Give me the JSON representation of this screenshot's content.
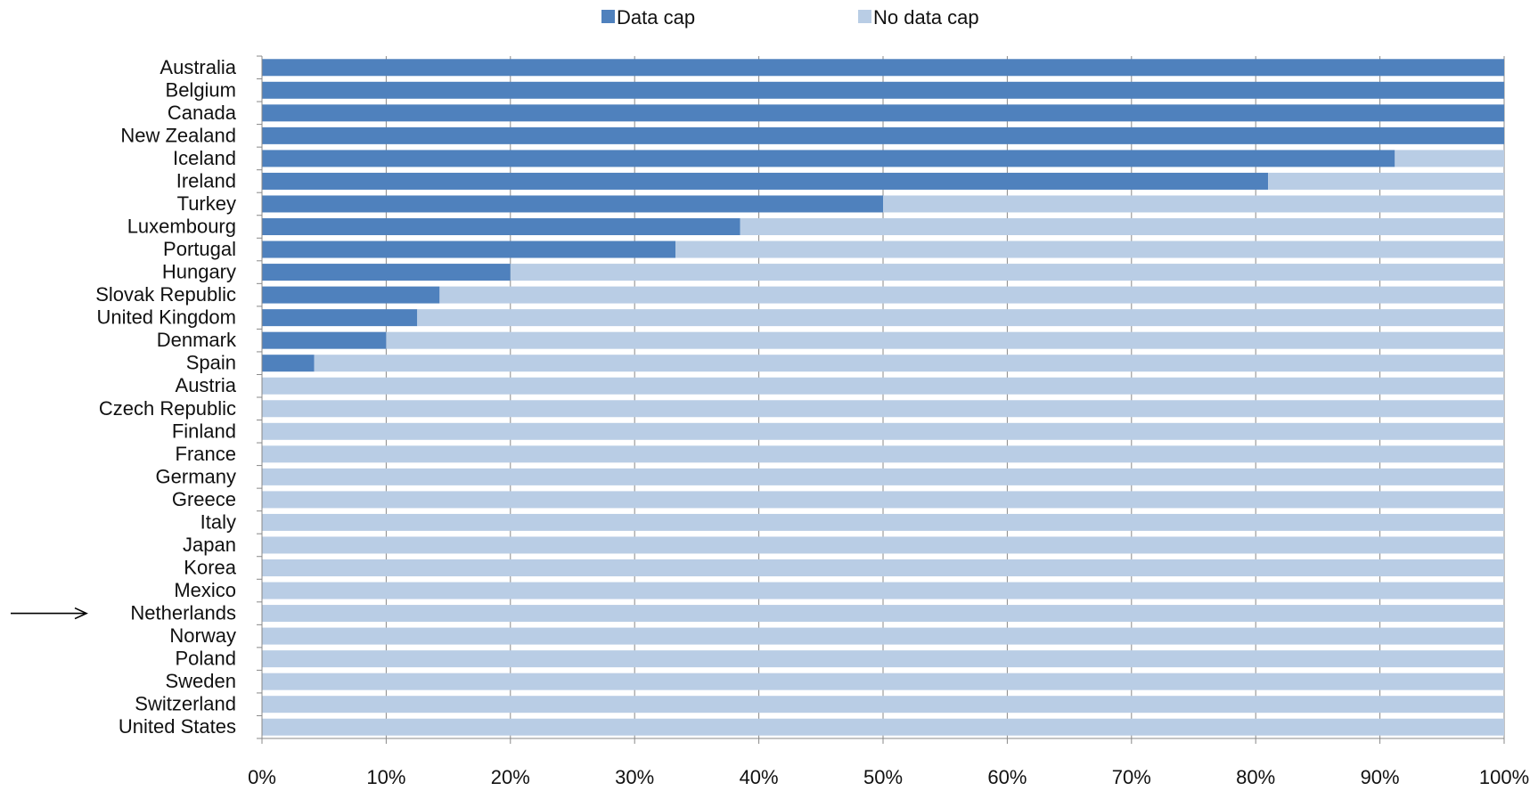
{
  "chart_data": {
    "type": "bar",
    "orientation": "horizontal",
    "stacked": true,
    "percent_scale": true,
    "categories": [
      "Australia",
      "Belgium",
      "Canada",
      "New Zealand",
      "Iceland",
      "Ireland",
      "Turkey",
      "Luxembourg",
      "Portugal",
      "Hungary",
      "Slovak Republic",
      "United Kingdom",
      "Denmark",
      "Spain",
      "Austria",
      "Czech Republic",
      "Finland",
      "France",
      "Germany",
      "Greece",
      "Italy",
      "Japan",
      "Korea",
      "Mexico",
      "Netherlands",
      "Norway",
      "Poland",
      "Sweden",
      "Switzerland",
      "United States"
    ],
    "series": [
      {
        "name": "Data cap",
        "color": "#4F81BD",
        "values": [
          100,
          100,
          100,
          100,
          91.2,
          81,
          50,
          38.5,
          33.3,
          20,
          14.3,
          12.5,
          10,
          4.2,
          0,
          0,
          0,
          0,
          0,
          0,
          0,
          0,
          0,
          0,
          0,
          0,
          0,
          0,
          0,
          0
        ]
      },
      {
        "name": "No data cap",
        "color": "#B9CDE5",
        "values": [
          0,
          0,
          0,
          0,
          8.8,
          19,
          50,
          61.5,
          66.7,
          80,
          85.7,
          87.5,
          90,
          95.8,
          100,
          100,
          100,
          100,
          100,
          100,
          100,
          100,
          100,
          100,
          100,
          100,
          100,
          100,
          100,
          100
        ]
      }
    ],
    "xlim": [
      0,
      100
    ],
    "xticks": [
      "0%",
      "10%",
      "20%",
      "30%",
      "40%",
      "50%",
      "60%",
      "70%",
      "80%",
      "90%",
      "100%"
    ],
    "legend": {
      "position": "top",
      "items": [
        "Data cap",
        "No data cap"
      ]
    },
    "annotations": [
      {
        "type": "arrow",
        "target": "Netherlands"
      }
    ],
    "grid": {
      "x": true,
      "y": false
    },
    "gridline_color": "#888888"
  }
}
